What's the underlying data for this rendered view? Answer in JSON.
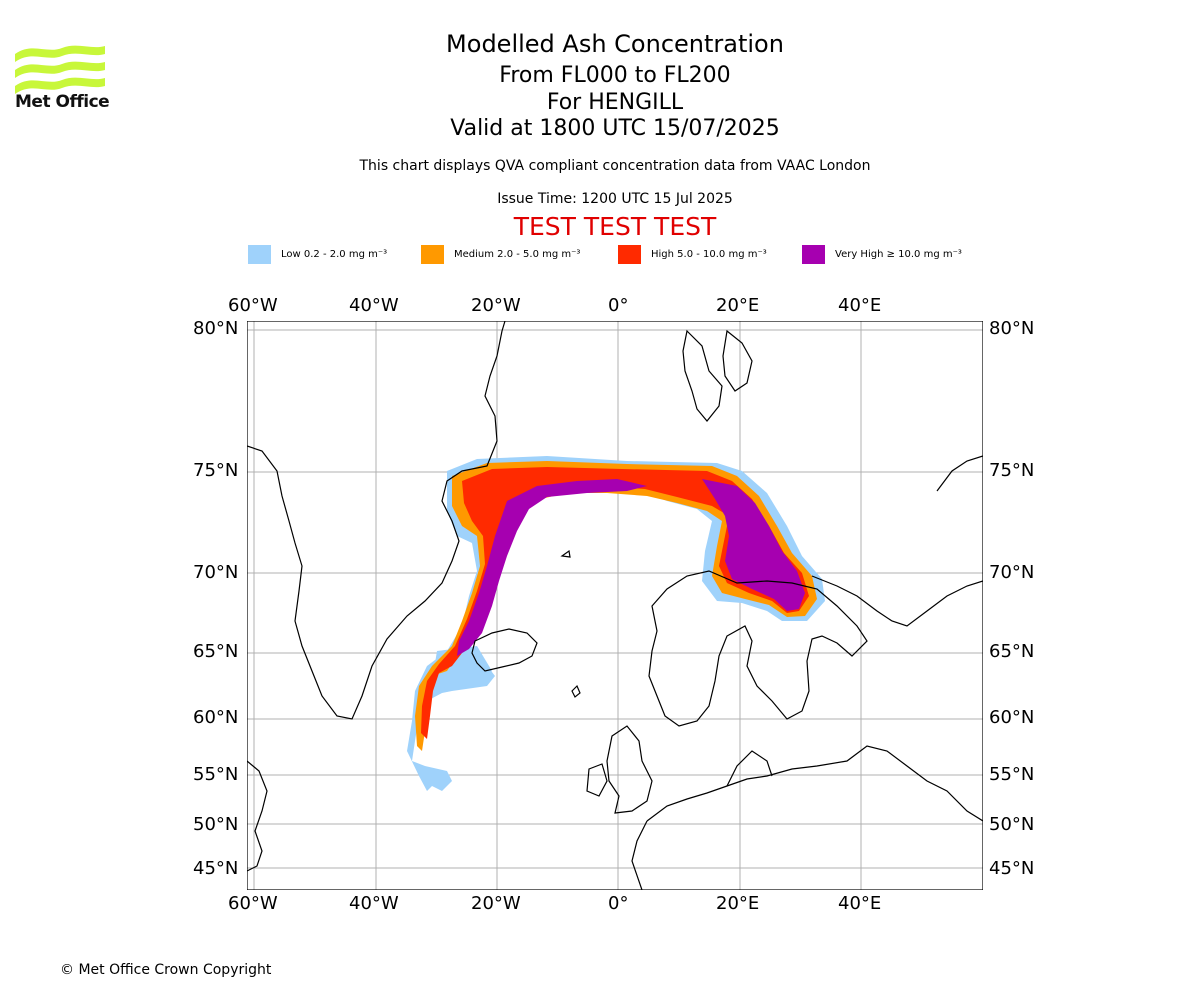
{
  "logo": {
    "text": "Met Office",
    "color": "#c8f73a"
  },
  "titles": {
    "main": "Modelled Ash Concentration",
    "levels": "From FL000 to FL200",
    "volcano": "For HENGILL",
    "valid": "Valid at 1800 UTC 15/07/2025",
    "compliance": "This chart displays QVA compliant concentration data from VAAC London",
    "issue": "Issue Time: 1200 UTC 15 Jul 2025",
    "test": "TEST TEST TEST"
  },
  "legend": [
    {
      "label": "Low 0.2 - 2.0 mg m⁻³",
      "color": "#9fd2fb"
    },
    {
      "label": "Medium 2.0 - 5.0 mg m⁻³",
      "color": "#ff9900"
    },
    {
      "label": "High 5.0 - 10.0 mg m⁻³",
      "color": "#ff2a00"
    },
    {
      "label": "Very High  ≥  10.0 mg m⁻³",
      "color": "#a600b0"
    }
  ],
  "map": {
    "lon_labels": [
      "60°W",
      "40°W",
      "20°W",
      "0°",
      "20°E",
      "40°E"
    ],
    "lat_labels": [
      "80°N",
      "75°N",
      "70°N",
      "65°N",
      "60°N",
      "55°N",
      "50°N",
      "45°N"
    ],
    "test_color": "#e00000"
  },
  "footer": "© Met Office Crown Copyright"
}
